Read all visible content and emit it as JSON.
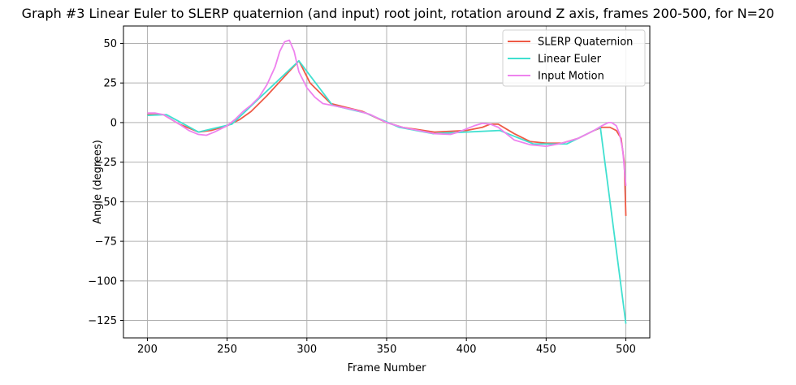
{
  "chart_data": {
    "type": "line",
    "title": "Graph #3 Linear Euler to SLERP quaternion (and input) root joint, rotation around Z axis, frames 200-500, for N=20",
    "xlabel": "Frame Number",
    "ylabel": "Angle (degrees)",
    "xlim": [
      185,
      515
    ],
    "ylim": [
      -136,
      61
    ],
    "xticks": [
      200,
      250,
      300,
      350,
      400,
      450,
      500
    ],
    "yticks": [
      -125,
      -100,
      -75,
      -50,
      -25,
      0,
      25,
      50
    ],
    "grid": true,
    "legend_position": "top-right",
    "series": [
      {
        "name": "SLERP Quaternion",
        "color": "#ee5a45",
        "x": [
          200,
          210,
          220,
          232,
          240,
          250,
          258,
          265,
          275,
          285,
          295,
          302,
          315,
          335,
          350,
          360,
          380,
          400,
          410,
          415,
          420,
          430,
          440,
          450,
          460,
          470,
          480,
          485,
          490,
          494,
          497,
          499,
          500
        ],
        "y": [
          5,
          5,
          -1,
          -6,
          -5,
          -2,
          2,
          7,
          17,
          28,
          39,
          25,
          12,
          7,
          0,
          -3,
          -6,
          -5,
          -3,
          -1,
          -1,
          -7,
          -12,
          -13,
          -13,
          -10,
          -5,
          -3,
          -3,
          -5,
          -10,
          -25,
          -59
        ]
      },
      {
        "name": "Linear Euler",
        "color": "#40e0d0",
        "x": [
          200,
          212,
          232,
          253,
          275,
          295,
          316,
          337,
          358,
          379,
          421,
          442,
          463,
          484,
          500
        ],
        "y": [
          4.5,
          5,
          -6,
          -1,
          20,
          39,
          11,
          6,
          -3,
          -7,
          -5,
          -13.5,
          -13.5,
          -3,
          -127
        ]
      },
      {
        "name": "Input Motion",
        "color": "#ee82ee",
        "x": [
          200,
          205,
          210,
          215,
          220,
          226,
          232,
          237,
          242,
          250,
          255,
          260,
          265,
          270,
          275,
          280,
          283,
          286,
          289,
          292,
          295,
          300,
          305,
          310,
          320,
          330,
          340,
          350,
          360,
          370,
          380,
          390,
          395,
          400,
          405,
          410,
          415,
          420,
          425,
          430,
          440,
          450,
          455,
          460,
          470,
          480,
          485,
          489,
          491,
          494,
          496,
          498,
          500
        ],
        "y": [
          6,
          6,
          5,
          2,
          -1,
          -5,
          -7.5,
          -8,
          -6,
          -2,
          2,
          7,
          11,
          16,
          24,
          35,
          45,
          51,
          52,
          45,
          32,
          22,
          16,
          12,
          10,
          8,
          5,
          0,
          -3,
          -5,
          -7,
          -7.5,
          -6,
          -4,
          -2,
          -0.5,
          -1,
          -3,
          -7,
          -11,
          -14,
          -15,
          -14,
          -13,
          -10,
          -5,
          -2,
          0,
          0,
          -2,
          -7,
          -17,
          -40
        ]
      }
    ]
  }
}
